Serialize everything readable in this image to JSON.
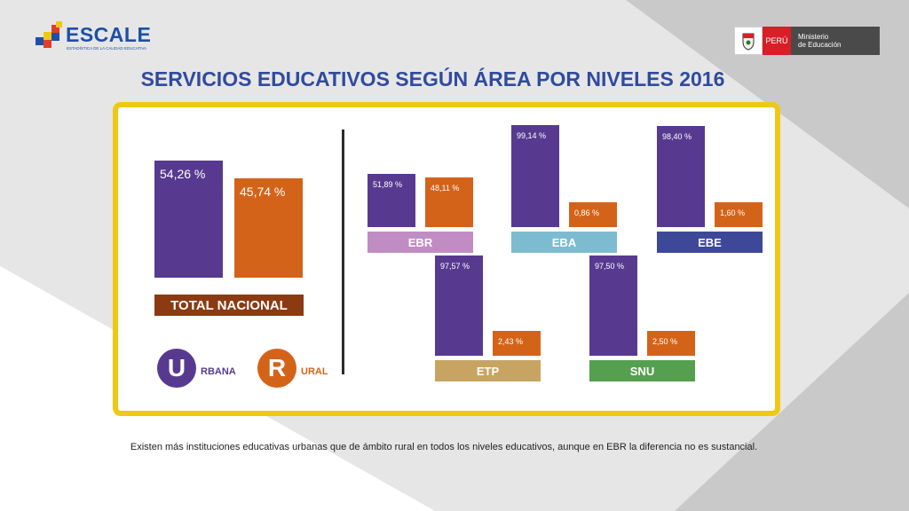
{
  "header": {
    "brand_name": "ESCALE",
    "brand_subtitle": "ESTADÍSTICA DE LA CALIDAD EDUCATIVA",
    "country_label": "PERÚ",
    "ministry_line1": "Ministerio",
    "ministry_line2": "de Educación",
    "title": "SERVICIOS EDUCATIVOS SEGÚN ÁREA POR NIVELES 2016"
  },
  "colors": {
    "urbana": "#573a90",
    "rural": "#d4631a",
    "panel_border": "#f0c814",
    "title": "#2f4ba0",
    "total_label": "#8b3a12",
    "EBR": "#c18cc4",
    "EBA": "#7dbcd0",
    "EBE": "#3e4899",
    "ETP": "#c8a462",
    "SNU": "#55a04f"
  },
  "chart_data": {
    "type": "bar",
    "unit": "%",
    "series_keys": [
      "urbana",
      "rural"
    ],
    "total": {
      "label": "TOTAL NACIONAL",
      "values": [
        54.26,
        45.74
      ],
      "labels": [
        "54,26 %",
        "45,74 %"
      ]
    },
    "groups": [
      {
        "category": "EBR",
        "values": [
          51.89,
          48.11
        ],
        "labels": [
          "51,89 %",
          "48,11 %"
        ]
      },
      {
        "category": "EBA",
        "values": [
          99.14,
          0.86
        ],
        "labels": [
          "99,14 %",
          "0,86 %"
        ]
      },
      {
        "category": "EBE",
        "values": [
          98.4,
          1.6
        ],
        "labels": [
          "98,40 %",
          "1,60 %"
        ]
      },
      {
        "category": "ETP",
        "values": [
          97.57,
          2.43
        ],
        "labels": [
          "97,57 %",
          "2,43 %"
        ]
      },
      {
        "category": "SNU",
        "values": [
          97.5,
          2.5
        ],
        "labels": [
          "97,50 %",
          "2,50 %"
        ]
      }
    ],
    "legend": [
      {
        "letter": "U",
        "rest": "RBANA",
        "series": "urbana"
      },
      {
        "letter": "R",
        "rest": "URAL",
        "series": "rural"
      }
    ]
  },
  "footnote": "Existen más instituciones educativas urbanas que de ámbito rural en todos los niveles educativos, aunque en EBR la diferencia no es sustancial."
}
